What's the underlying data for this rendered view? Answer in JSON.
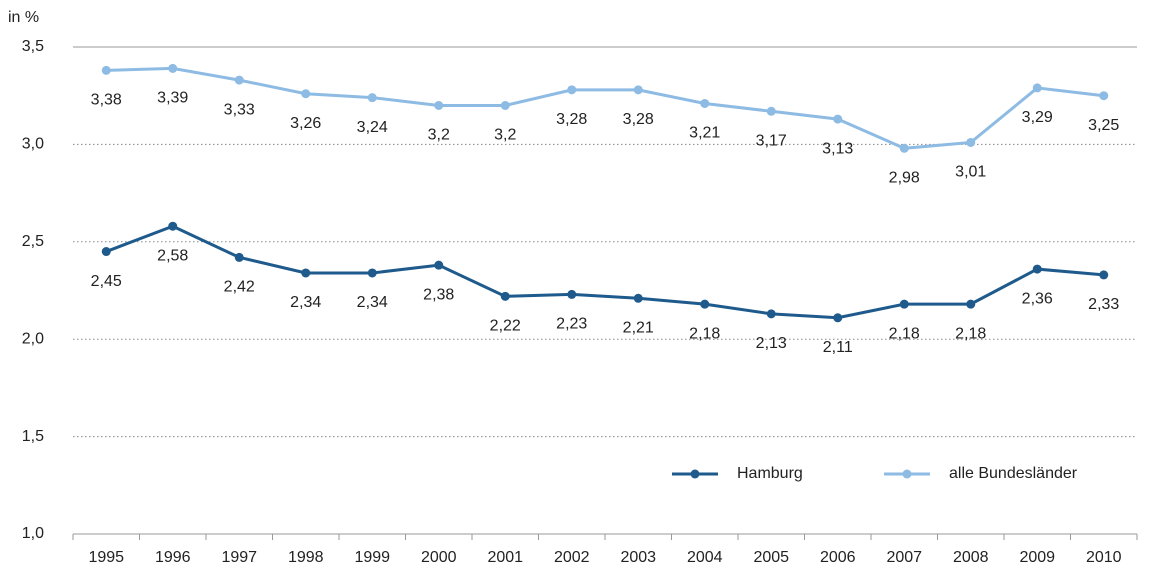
{
  "chart_data": {
    "type": "line",
    "y_axis_label": "in %",
    "categories": [
      "1995",
      "1996",
      "1997",
      "1998",
      "1999",
      "2000",
      "2001",
      "2002",
      "2003",
      "2004",
      "2005",
      "2006",
      "2007",
      "2008",
      "2009",
      "2010"
    ],
    "series": [
      {
        "name": "Hamburg",
        "color": "#1f5a8c",
        "values": [
          2.45,
          2.58,
          2.42,
          2.34,
          2.34,
          2.38,
          2.22,
          2.23,
          2.21,
          2.18,
          2.13,
          2.11,
          2.18,
          2.18,
          2.36,
          2.33
        ],
        "value_labels": [
          "2,45",
          "2,58",
          "2,42",
          "2,34",
          "2,34",
          "2,38",
          "2,22",
          "2,23",
          "2,21",
          "2,18",
          "2,13",
          "2,11",
          "2,18",
          "2,18",
          "2,36",
          "2,33"
        ]
      },
      {
        "name": "alle Bundesländer",
        "color": "#8dbbe3",
        "values": [
          3.38,
          3.39,
          3.33,
          3.26,
          3.24,
          3.2,
          3.2,
          3.28,
          3.28,
          3.21,
          3.17,
          3.13,
          2.98,
          3.01,
          3.29,
          3.25
        ],
        "value_labels": [
          "3,38",
          "3,39",
          "3,33",
          "3,26",
          "3,24",
          "3,2",
          "3,2",
          "3,28",
          "3,28",
          "3,21",
          "3,17",
          "3,13",
          "2,98",
          "3,01",
          "3,29",
          "3,25"
        ]
      }
    ],
    "ylim": [
      1.0,
      3.5
    ],
    "yticks": [
      {
        "value": 1.0,
        "label": "1,0"
      },
      {
        "value": 1.5,
        "label": "1,5"
      },
      {
        "value": 2.0,
        "label": "2,0"
      },
      {
        "value": 2.5,
        "label": "2,5"
      },
      {
        "value": 3.0,
        "label": "3,0"
      },
      {
        "value": 3.5,
        "label": "3,5"
      }
    ],
    "grid": true,
    "legend": "lower right"
  }
}
